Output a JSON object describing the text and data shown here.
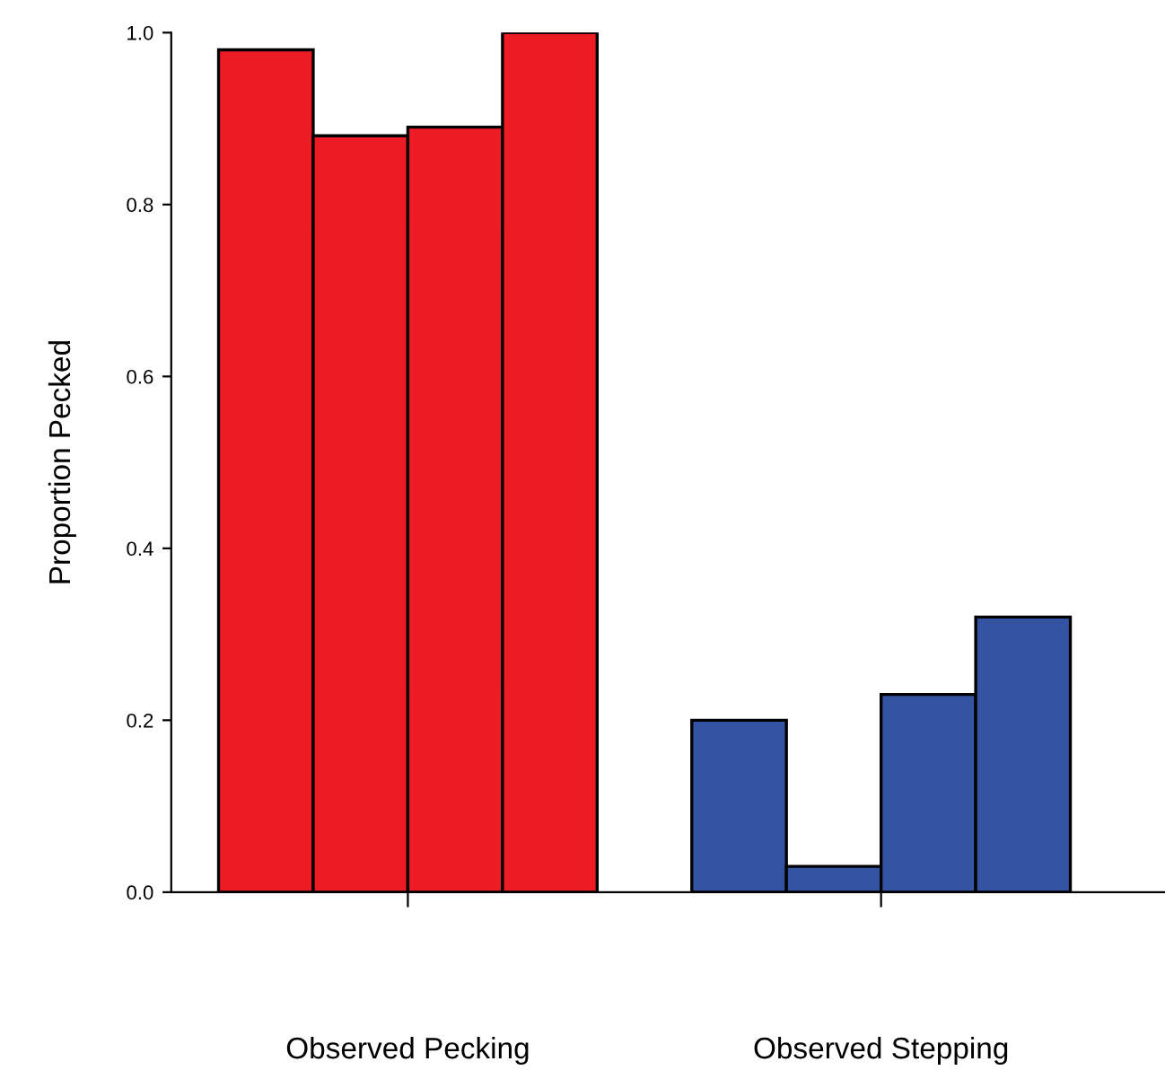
{
  "chart_data": {
    "type": "bar",
    "ylabel": "Proportion Pecked",
    "categories": [
      "Observed Pecking",
      "Observed Stepping"
    ],
    "series": [
      {
        "colors": [
          "#ed1c24",
          "#3353a3"
        ],
        "values": [
          0.98,
          0.2
        ]
      },
      {
        "colors": [
          "#ed1c24",
          "#3353a3"
        ],
        "values": [
          0.88,
          0.03
        ]
      },
      {
        "colors": [
          "#ed1c24",
          "#3353a3"
        ],
        "values": [
          0.89,
          0.23
        ]
      },
      {
        "colors": [
          "#ed1c24",
          "#3353a3"
        ],
        "values": [
          1.0,
          0.32
        ]
      }
    ],
    "ylim": [
      0,
      1.0
    ],
    "yticks": [
      {
        "value": 0,
        "label": "0.0"
      },
      0.2,
      0.4,
      0.6,
      0.8,
      {
        "value": 1,
        "label": "1.0"
      }
    ],
    "grid": false,
    "legend": false
  }
}
